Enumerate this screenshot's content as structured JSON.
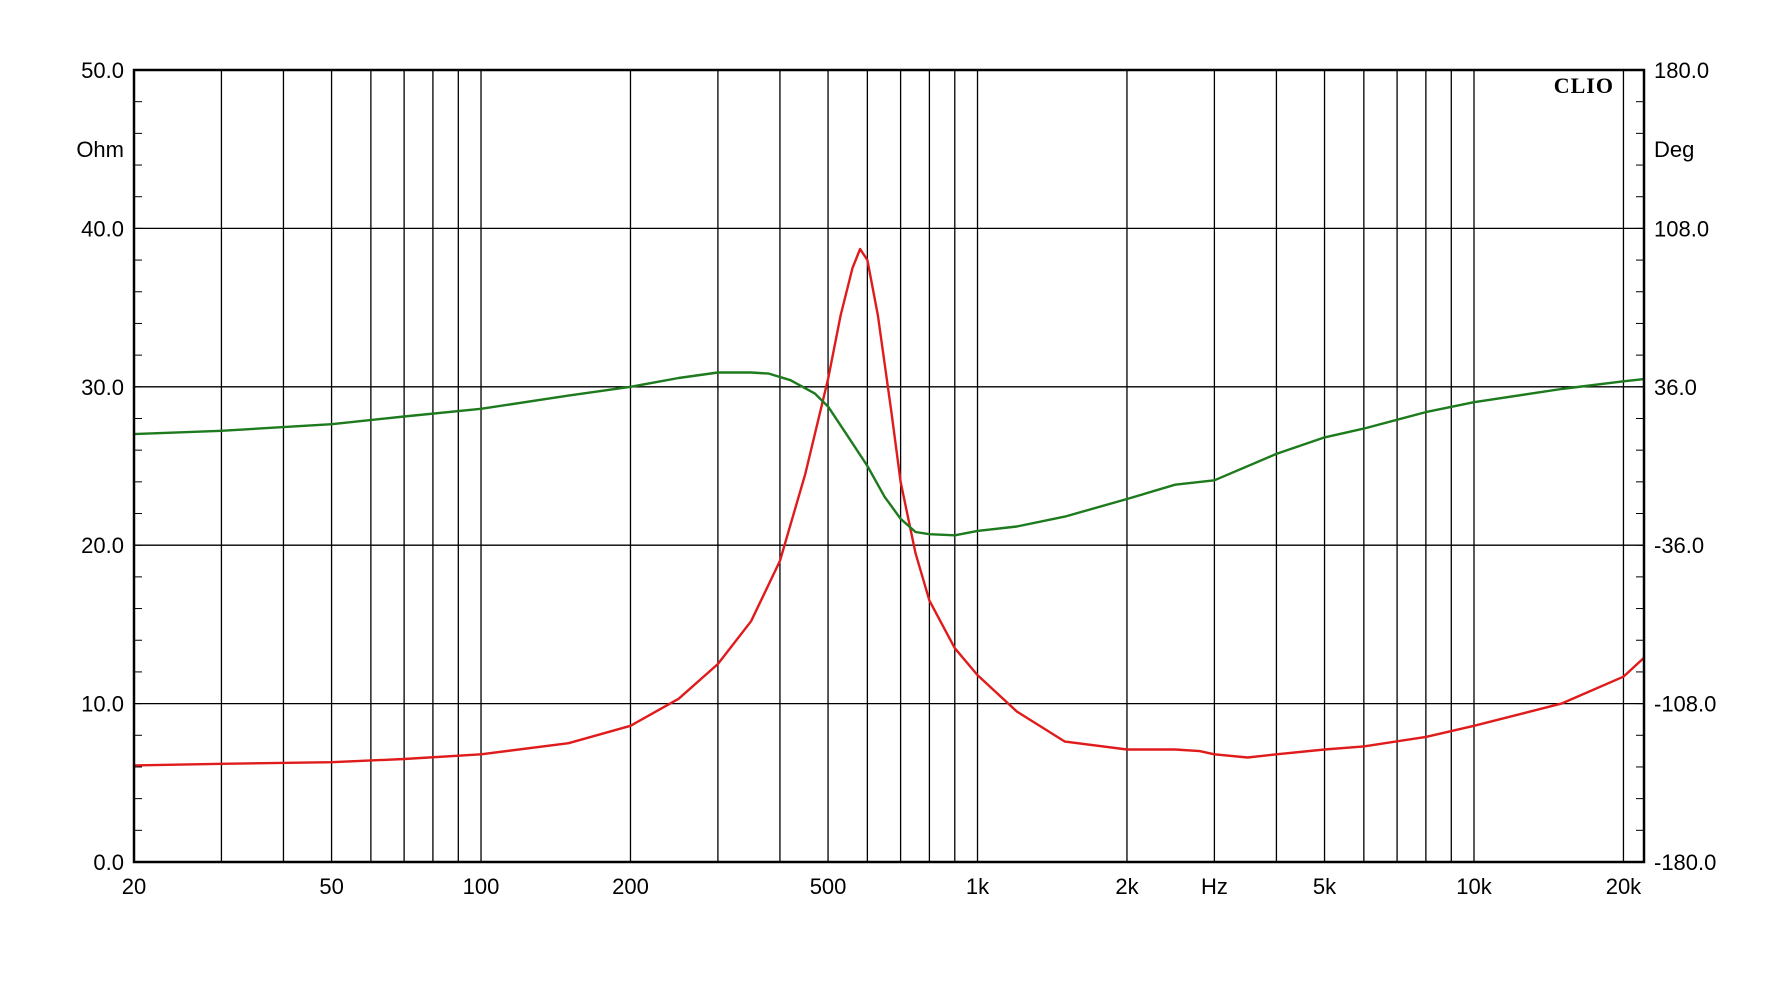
{
  "chart_data": {
    "type": "line",
    "brand": "CLIO",
    "xlabel": "Hz",
    "ylabel_left": "Ohm",
    "ylabel_right": "Deg",
    "x_scale": "log",
    "xlim": [
      20,
      22000
    ],
    "ylim_left": [
      0,
      50
    ],
    "ylim_right": [
      -180,
      180
    ],
    "grid": true,
    "x_ticks": [
      {
        "value": 20,
        "label": "20"
      },
      {
        "value": 50,
        "label": "50"
      },
      {
        "value": 100,
        "label": "100"
      },
      {
        "value": 200,
        "label": "200"
      },
      {
        "value": 500,
        "label": "500"
      },
      {
        "value": 1000,
        "label": "1k"
      },
      {
        "value": 2000,
        "label": "2k"
      },
      {
        "value": 5000,
        "label": "5k"
      },
      {
        "value": 10000,
        "label": "10k"
      },
      {
        "value": 20000,
        "label": "20k"
      }
    ],
    "x_unit_label_at": 3000,
    "y_left_ticks": [
      {
        "value": 50,
        "label": "50.0"
      },
      {
        "value": 40,
        "label": "40.0"
      },
      {
        "value": 30,
        "label": "30.0"
      },
      {
        "value": 20,
        "label": "20.0"
      },
      {
        "value": 10,
        "label": "10.0"
      },
      {
        "value": 0,
        "label": "0.0"
      }
    ],
    "y_right_ticks": [
      {
        "value": 180,
        "label": "180.0"
      },
      {
        "value": 108,
        "label": "108.0"
      },
      {
        "value": 36,
        "label": "36.0"
      },
      {
        "value": -36,
        "label": "-36.0"
      },
      {
        "value": -108,
        "label": "-108.0"
      },
      {
        "value": -180,
        "label": "-180.0"
      }
    ],
    "series": [
      {
        "color": "#e01b1b",
        "axis": "left",
        "x": [
          20,
          30,
          50,
          70,
          100,
          150,
          200,
          250,
          300,
          350,
          400,
          450,
          500,
          530,
          560,
          580,
          600,
          630,
          670,
          700,
          750,
          800,
          900,
          1000,
          1200,
          1500,
          2000,
          2500,
          2800,
          3000,
          3500,
          4000,
          5000,
          6000,
          8000,
          10000,
          15000,
          20000,
          22000
        ],
        "y": [
          6.1,
          6.2,
          6.3,
          6.5,
          6.8,
          7.5,
          8.6,
          10.3,
          12.5,
          15.2,
          19.0,
          24.5,
          30.5,
          34.5,
          37.5,
          38.7,
          38.0,
          34.5,
          28.5,
          24.0,
          19.5,
          16.5,
          13.5,
          11.8,
          9.5,
          7.6,
          7.1,
          7.1,
          7.0,
          6.8,
          6.6,
          6.8,
          7.1,
          7.3,
          7.9,
          8.6,
          10.0,
          11.7,
          12.9
        ]
      },
      {
        "color": "#1d7a1d",
        "axis": "right",
        "x": [
          20,
          30,
          50,
          70,
          100,
          150,
          200,
          250,
          300,
          350,
          380,
          420,
          470,
          500,
          550,
          600,
          650,
          700,
          750,
          800,
          900,
          1000,
          1200,
          1500,
          2000,
          2500,
          3000,
          4000,
          5000,
          6000,
          8000,
          10000,
          15000,
          20000,
          22000
        ],
        "y": [
          14.5,
          16,
          19,
          22.5,
          26,
          32,
          36,
          40,
          42.5,
          42.5,
          42,
          39,
          33,
          27,
          13,
          0,
          -14,
          -24,
          -30,
          -31,
          -31.5,
          -29.5,
          -27.5,
          -23,
          -15,
          -8.5,
          -6.5,
          5.5,
          13,
          17,
          24.5,
          29,
          35,
          38.5,
          39.5
        ]
      }
    ]
  }
}
